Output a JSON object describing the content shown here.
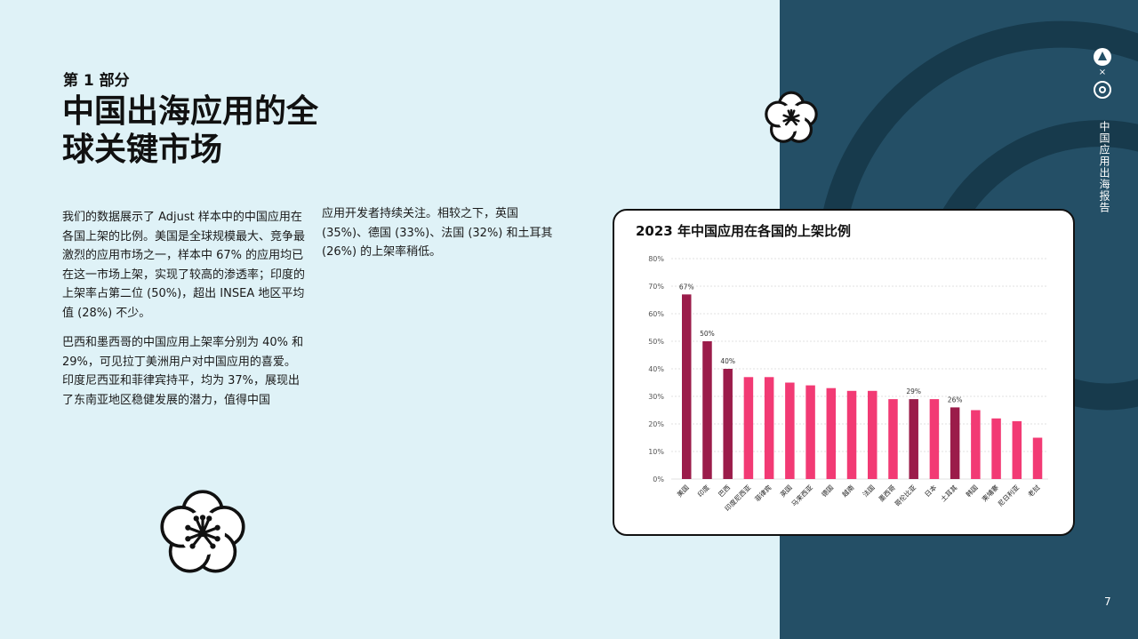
{
  "header": {
    "section_label": "第 1 部分",
    "title": "中国出海应用的全球关键市场"
  },
  "body": {
    "paragraph1": "我们的数据展示了 Adjust 样本中的中国应用在各国上架的比例。美国是全球规模最大、竞争最激烈的应用市场之一，样本中 67% 的应用均已在这一市场上架，实现了较高的渗透率；印度的上架率占第二位 (50%)，超出 INSEA 地区平均值 (28%) 不少。",
    "paragraph2": "巴西和墨西哥的中国应用上架率分别为 40% 和 29%，可见拉丁美洲用户对中国应用的喜爱。印度尼西亚和菲律宾持平，均为 37%，展现出了东南亚地区稳健发展的潜力，值得中国",
    "paragraph3": "应用开发者持续关注。相较之下，英国 (35%)、德国 (33%)、法国 (32%) 和土耳其 (26%) 的上架率稍低。"
  },
  "sidebar": {
    "vertical_title": "中国应用出海报告",
    "logo_separator": "×",
    "page_number": "7"
  },
  "colors": {
    "highlight_bar": "#9b1c4a",
    "normal_bar": "#f23a74",
    "panel": "#244f66",
    "background": "#dff2f7"
  },
  "icons": [
    "plum-blossom-icon",
    "adjust-logo-icon",
    "partner-logo-icon"
  ],
  "chart_data": {
    "type": "bar",
    "title": "2023 年中国应用在各国的上架比例",
    "categories": [
      "美国",
      "印度",
      "巴西",
      "印度尼西亚",
      "菲律宾",
      "英国",
      "马来西亚",
      "德国",
      "越南",
      "法国",
      "墨西哥",
      "哥伦比亚",
      "日本",
      "土耳其",
      "韩国",
      "柬埔寨",
      "尼日利亚",
      "老挝"
    ],
    "values": [
      67,
      50,
      40,
      37,
      37,
      35,
      34,
      33,
      32,
      32,
      29,
      29,
      29,
      26,
      25,
      22,
      21,
      15
    ],
    "highlighted": [
      true,
      true,
      true,
      false,
      false,
      false,
      false,
      false,
      false,
      false,
      false,
      true,
      false,
      true,
      false,
      false,
      false,
      false
    ],
    "data_labels": [
      "67%",
      "50%",
      "40%",
      "",
      "",
      "",
      "",
      "",
      "",
      "",
      "",
      "29%",
      "",
      "26%",
      "",
      "",
      "",
      ""
    ],
    "y_ticks": [
      "0%",
      "10%",
      "20%",
      "30%",
      "40%",
      "50%",
      "60%",
      "70%",
      "80%"
    ],
    "ylim": [
      0,
      80
    ],
    "grid": true,
    "legend": false
  }
}
